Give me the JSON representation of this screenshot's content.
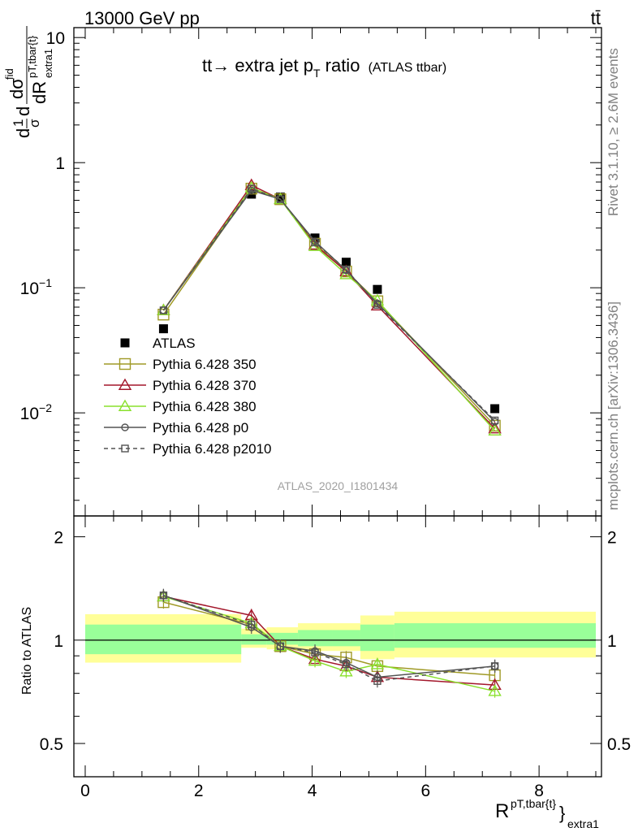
{
  "header": {
    "energy_label": "13000 GeV pp",
    "process_label": "tt̄"
  },
  "side_labels": {
    "rivet": "Rivet 3.1.10, ≥ 2.6M events",
    "mcplots": "mcplots.cern.ch [arXiv:1306.3436]"
  },
  "chart_data": [
    {
      "type": "line",
      "title": "tt→ extra jet p",
      "title_sub": "T",
      "title_rest": " ratio",
      "title_small": "(ATLAS ttbar)",
      "ylabel": {
        "pre": "d",
        "frac_num": "1",
        "frac_den": "σ",
        "mid": "d",
        "num": "dσ",
        "num_sup": "fid",
        "den": "dR",
        "den_sup": "pT,tbar{t}",
        "den_sub": "extra1"
      },
      "yscale": "log",
      "ylim": [
        0.0015,
        12
      ],
      "xlim": [
        -0.2,
        9.1
      ],
      "y_tick_labels": [
        {
          "value": 10,
          "base": "10",
          "exp": ""
        },
        {
          "value": 1,
          "base": "1",
          "exp": ""
        },
        {
          "value": 0.1,
          "base": "10",
          "exp": "−1"
        },
        {
          "value": 0.01,
          "base": "10",
          "exp": "−2"
        }
      ],
      "watermark": "ATLAS_2020_I1801434",
      "x": [
        1.38,
        2.93,
        3.44,
        4.05,
        4.6,
        5.15,
        7.22
      ],
      "series": [
        {
          "name": "ATLAS",
          "marker": "filled-square",
          "color": "#000000",
          "values": [
            0.047,
            0.56,
            0.53,
            0.25,
            0.16,
            0.097,
            0.0108
          ]
        },
        {
          "name": "Pythia 6.428 350",
          "marker": "open-square",
          "color": "#a09a26",
          "values": [
            0.061,
            0.62,
            0.51,
            0.225,
            0.135,
            0.078,
            0.0079
          ]
        },
        {
          "name": "Pythia 6.428 370",
          "marker": "open-triangle",
          "color": "#a3172b",
          "values": [
            0.066,
            0.66,
            0.51,
            0.22,
            0.135,
            0.072,
            0.0075
          ]
        },
        {
          "name": "Pythia 6.428 380",
          "marker": "open-triangle",
          "color": "#8ae02d",
          "values": [
            0.066,
            0.63,
            0.51,
            0.215,
            0.128,
            0.079,
            0.0072
          ]
        },
        {
          "name": "Pythia 6.428 p0",
          "marker": "open-circle",
          "color": "#535353",
          "values": [
            0.066,
            0.6,
            0.51,
            0.235,
            0.138,
            0.075,
            0.0085
          ]
        },
        {
          "name": "Pythia 6.428 p2010",
          "marker": "open-square-dashed",
          "color": "#535353",
          "values": [
            0.066,
            0.62,
            0.51,
            0.23,
            0.14,
            0.073,
            0.0087
          ]
        }
      ]
    },
    {
      "type": "line",
      "ylabel": "Ratio to ATLAS",
      "xlabel": {
        "base": "R",
        "sup": "pT,tbar{t}",
        "brace": "}",
        "sub": "extra1"
      },
      "ylim": [
        0.4,
        2.3
      ],
      "xlim": [
        -0.2,
        9.1
      ],
      "y_tick_labels": [
        {
          "value": 2,
          "label": "2"
        },
        {
          "value": 1,
          "label": "1"
        },
        {
          "value": 0.5,
          "label": "0.5"
        }
      ],
      "x_tick_labels": [
        {
          "value": 0,
          "label": "0"
        },
        {
          "value": 2,
          "label": "2"
        },
        {
          "value": 4,
          "label": "4"
        },
        {
          "value": 6,
          "label": "6"
        },
        {
          "value": 8,
          "label": "8"
        }
      ],
      "bands": [
        {
          "x0": 0.0,
          "x1": 2.75,
          "yellow": [
            0.86,
            1.19
          ],
          "green": [
            0.91,
            1.11
          ]
        },
        {
          "x0": 2.75,
          "x1": 3.2,
          "yellow": [
            0.95,
            1.08
          ],
          "green": [
            0.97,
            1.04
          ]
        },
        {
          "x0": 3.2,
          "x1": 3.75,
          "yellow": [
            0.94,
            1.09
          ],
          "green": [
            0.97,
            1.05
          ]
        },
        {
          "x0": 3.75,
          "x1": 4.35,
          "yellow": [
            0.93,
            1.12
          ],
          "green": [
            0.96,
            1.07
          ]
        },
        {
          "x0": 4.35,
          "x1": 4.85,
          "yellow": [
            0.93,
            1.12
          ],
          "green": [
            0.96,
            1.07
          ]
        },
        {
          "x0": 4.85,
          "x1": 5.45,
          "yellow": [
            0.88,
            1.18
          ],
          "green": [
            0.93,
            1.11
          ]
        },
        {
          "x0": 5.45,
          "x1": 9.0,
          "yellow": [
            0.89,
            1.21
          ],
          "green": [
            0.95,
            1.12
          ]
        }
      ],
      "x": [
        1.38,
        2.93,
        3.44,
        4.05,
        4.6,
        5.15,
        7.22
      ],
      "series": [
        {
          "name": "Pythia 6.428 350",
          "color": "#a09a26",
          "values": [
            1.29,
            1.11,
            0.96,
            0.91,
            0.89,
            0.84,
            0.79
          ]
        },
        {
          "name": "Pythia 6.428 370",
          "color": "#a3172b",
          "values": [
            1.34,
            1.18,
            0.96,
            0.88,
            0.84,
            0.78,
            0.74
          ]
        },
        {
          "name": "Pythia 6.428 380",
          "color": "#8ae02d",
          "values": [
            1.34,
            1.12,
            0.96,
            0.87,
            0.81,
            0.85,
            0.71
          ]
        },
        {
          "name": "Pythia 6.428 p0",
          "color": "#535353",
          "values": [
            1.35,
            1.09,
            0.96,
            0.93,
            0.86,
            0.78,
            0.84
          ]
        },
        {
          "name": "Pythia 6.428 p2010",
          "color": "#535353",
          "values": [
            1.35,
            1.11,
            0.96,
            0.92,
            0.85,
            0.76,
            0.84
          ]
        }
      ]
    }
  ]
}
